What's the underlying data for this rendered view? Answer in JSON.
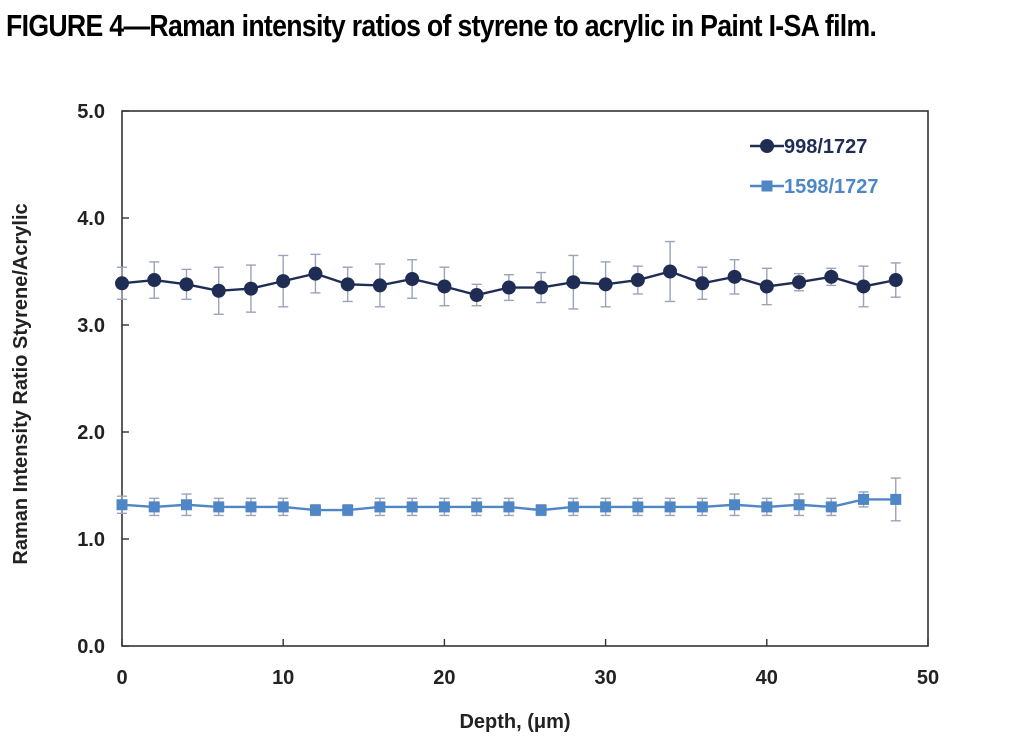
{
  "figure": {
    "title": "FIGURE 4—Raman intensity ratios of styrene to acrylic in Paint I-SA film."
  },
  "chart_data": {
    "type": "line",
    "title": "FIGURE 4—Raman intensity ratios of styrene to acrylic in Paint I-SA film.",
    "xlabel": "Depth, (μm)",
    "ylabel": "Raman Intensity Ratio Styrene/Acrylic",
    "xlim": [
      0,
      50
    ],
    "ylim": [
      0.0,
      5.0
    ],
    "xticks": [
      0,
      10,
      20,
      30,
      40,
      50
    ],
    "yticks": [
      "0.0",
      "1.0",
      "2.0",
      "3.0",
      "4.0",
      "5.0"
    ],
    "grid": false,
    "legend_position": "top-right",
    "x": [
      0,
      2,
      4,
      6,
      8,
      10,
      12,
      14,
      16,
      18,
      20,
      22,
      24,
      26,
      28,
      30,
      32,
      34,
      36,
      38,
      40,
      42,
      44,
      46,
      48
    ],
    "series": [
      {
        "name": "998/1727",
        "marker": "circle",
        "color": "#1f2d55",
        "values": [
          3.39,
          3.42,
          3.38,
          3.32,
          3.34,
          3.41,
          3.48,
          3.38,
          3.37,
          3.43,
          3.36,
          3.28,
          3.35,
          3.35,
          3.4,
          3.38,
          3.42,
          3.5,
          3.39,
          3.45,
          3.36,
          3.4,
          3.45,
          3.36,
          3.42
        ],
        "errors": [
          0.15,
          0.17,
          0.14,
          0.22,
          0.22,
          0.24,
          0.18,
          0.16,
          0.2,
          0.18,
          0.18,
          0.1,
          0.12,
          0.14,
          0.25,
          0.21,
          0.13,
          0.28,
          0.15,
          0.16,
          0.17,
          0.08,
          0.08,
          0.19,
          0.16
        ]
      },
      {
        "name": "1598/1727",
        "marker": "square",
        "color": "#4f86c6",
        "values": [
          1.32,
          1.3,
          1.32,
          1.3,
          1.3,
          1.3,
          1.27,
          1.27,
          1.3,
          1.3,
          1.3,
          1.3,
          1.3,
          1.27,
          1.3,
          1.3,
          1.3,
          1.3,
          1.3,
          1.32,
          1.3,
          1.32,
          1.3,
          1.37,
          1.37
        ],
        "errors": [
          0.08,
          0.08,
          0.1,
          0.08,
          0.08,
          0.08,
          0.05,
          0.05,
          0.08,
          0.08,
          0.08,
          0.08,
          0.08,
          0.05,
          0.08,
          0.08,
          0.08,
          0.08,
          0.08,
          0.1,
          0.08,
          0.1,
          0.08,
          0.07,
          0.2
        ]
      }
    ]
  }
}
